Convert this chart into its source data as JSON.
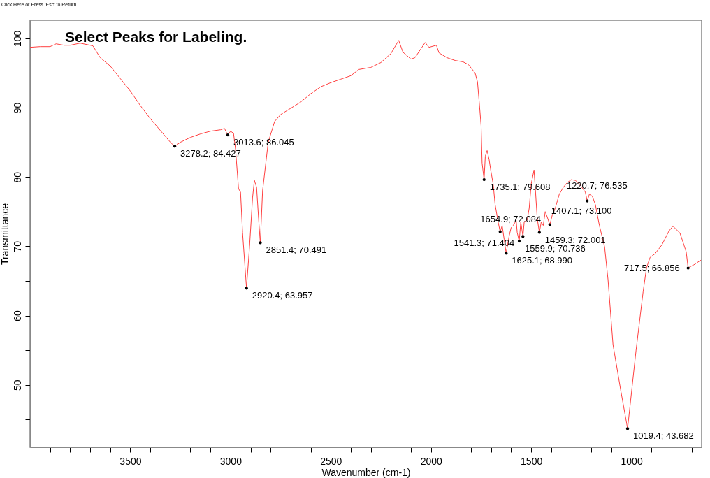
{
  "chart_data": {
    "type": "line",
    "title": "Select Peaks for Labeling.",
    "xlabel": "Wavenumber (cm-1)",
    "ylabel": "Transmittance",
    "xlim": [
      4000,
      650
    ],
    "ylim": [
      41,
      102.6
    ],
    "xticks": [
      {
        "value": 3900,
        "label": null
      },
      {
        "value": 3800,
        "label": null
      },
      {
        "value": 3700,
        "label": null
      },
      {
        "value": 3600,
        "label": null
      },
      3500,
      {
        "value": 3400,
        "label": null
      },
      {
        "value": 3300,
        "label": null
      },
      {
        "value": 3200,
        "label": null
      },
      {
        "value": 3100,
        "label": null
      },
      3000,
      {
        "value": 2900,
        "label": null
      },
      {
        "value": 2800,
        "label": null
      },
      {
        "value": 2700,
        "label": null
      },
      {
        "value": 2600,
        "label": null
      },
      2500,
      {
        "value": 2400,
        "label": null
      },
      {
        "value": 2300,
        "label": null
      },
      {
        "value": 2200,
        "label": null
      },
      {
        "value": 2100,
        "label": null
      },
      2000,
      {
        "value": 1900,
        "label": null
      },
      {
        "value": 1800,
        "label": null
      },
      {
        "value": 1700,
        "label": null
      },
      {
        "value": 1600,
        "label": null
      },
      1500,
      {
        "value": 1400,
        "label": null
      },
      {
        "value": 1300,
        "label": null
      },
      {
        "value": 1200,
        "label": null
      },
      {
        "value": 1100,
        "label": null
      },
      1000,
      {
        "value": 900,
        "label": null
      },
      {
        "value": 800,
        "label": null
      },
      {
        "value": 700,
        "label": null
      }
    ],
    "yticks": [
      {
        "value": 45,
        "label": null
      },
      50,
      {
        "value": 55,
        "label": null
      },
      60,
      {
        "value": 65,
        "label": null
      },
      70,
      {
        "value": 75,
        "label": null
      },
      80,
      {
        "value": 85,
        "label": null
      },
      90,
      {
        "value": 95,
        "label": null
      },
      100
    ],
    "grid": false,
    "marker": "none",
    "line_style": "solid",
    "series": [
      {
        "color": "#ff4040",
        "x": [
          4000,
          3950,
          3900,
          3870,
          3830,
          3800,
          3750,
          3700,
          3686,
          3650,
          3600,
          3550,
          3500,
          3450,
          3400,
          3350,
          3300,
          3278.2,
          3250,
          3200,
          3150,
          3100,
          3050,
          3030,
          3013.6,
          3000,
          2985,
          2975,
          2960,
          2950,
          2940,
          2920.4,
          2905,
          2890,
          2881,
          2870,
          2860,
          2851.4,
          2840,
          2812,
          2780,
          2750,
          2700,
          2650,
          2600,
          2550,
          2500,
          2450,
          2400,
          2360,
          2300,
          2250,
          2200,
          2161,
          2140,
          2100,
          2080,
          2050,
          2029,
          2010,
          1973,
          1960,
          1920,
          1880,
          1840,
          1813,
          1780,
          1768,
          1760,
          1750,
          1745,
          1735.1,
          1729,
          1720,
          1710,
          1702,
          1690,
          1680,
          1665,
          1654.9,
          1645,
          1635,
          1625.1,
          1610,
          1600,
          1590,
          1575,
          1570,
          1559.9,
          1552,
          1541.3,
          1535,
          1520,
          1510,
          1500,
          1486,
          1480,
          1470,
          1459.3,
          1450,
          1440,
          1430,
          1420,
          1407.1,
          1395,
          1380,
          1360,
          1340,
          1320,
          1300,
          1280,
          1260,
          1240,
          1230,
          1220.7,
          1210,
          1195,
          1180,
          1160,
          1134,
          1117,
          1092,
          1054,
          1019.4,
          977,
          942,
          925,
          907,
          883,
          848,
          813,
          793,
          758,
          727,
          717.5,
          690,
          653
        ],
        "values": [
          98.7,
          98.8,
          98.8,
          99.2,
          99.0,
          99.0,
          99.3,
          99.0,
          98.9,
          97.2,
          96.0,
          94.2,
          92.4,
          90.3,
          88.4,
          86.7,
          85.0,
          84.4,
          85.0,
          85.7,
          86.2,
          86.6,
          86.8,
          87.0,
          86.0,
          86.6,
          86.3,
          84.0,
          78.3,
          77.8,
          72.0,
          64.0,
          70.0,
          77.0,
          79.5,
          78.5,
          74.0,
          70.5,
          78.0,
          85.0,
          88.0,
          89.0,
          89.9,
          90.8,
          92.0,
          93.0,
          93.6,
          94.1,
          94.6,
          95.5,
          95.8,
          96.5,
          97.8,
          99.7,
          98.0,
          97.0,
          97.2,
          98.5,
          99.4,
          98.7,
          99.0,
          97.9,
          97.2,
          96.8,
          96.6,
          96.2,
          95.0,
          93.7,
          91.0,
          87.4,
          82.0,
          79.6,
          83.0,
          83.8,
          82.5,
          81.0,
          79.0,
          76.0,
          73.5,
          72.1,
          73.0,
          71.0,
          69.0,
          71.5,
          72.7,
          73.0,
          73.7,
          72.0,
          70.7,
          73.5,
          71.4,
          73.5,
          73.8,
          75.5,
          79.0,
          81.0,
          78.5,
          74.0,
          72.0,
          73.5,
          73.0,
          75.0,
          74.2,
          73.1,
          74.5,
          75.5,
          77.5,
          78.5,
          79.2,
          79.6,
          79.5,
          79.0,
          78.2,
          77.8,
          76.5,
          77.5,
          77.2,
          76.0,
          73.0,
          69.9,
          65.2,
          55.8,
          49.3,
          43.7,
          55.0,
          63.4,
          66.9,
          68.4,
          68.9,
          70.2,
          72.2,
          72.9,
          71.9,
          69.2,
          66.9,
          67.3,
          68.0
        ]
      }
    ],
    "annotations": [
      "Click Here or Press 'Esc' to Return",
      {
        "text": "3278.2; 84.427",
        "x": 3278.2,
        "y": 84.427
      },
      {
        "text": "3013.6; 86.045",
        "x": 3013.6,
        "y": 86.045
      },
      {
        "text": "2920.4; 63.957",
        "x": 2920.4,
        "y": 63.957
      },
      {
        "text": "2851.4; 70.491",
        "x": 2851.4,
        "y": 70.491
      },
      {
        "text": "1735.1; 79.608",
        "x": 1735.1,
        "y": 79.608
      },
      {
        "text": "1654.9; 72.084",
        "x": 1654.9,
        "y": 72.084
      },
      {
        "text": "1625.1; 68.990",
        "x": 1625.1,
        "y": 68.99
      },
      {
        "text": "1559.9; 70.736",
        "x": 1559.9,
        "y": 70.736
      },
      {
        "text": "1541.3; 71.404",
        "x": 1541.3,
        "y": 71.404
      },
      {
        "text": "1459.3; 72.001",
        "x": 1459.3,
        "y": 72.001
      },
      {
        "text": "1407.1; 73.100",
        "x": 1407.1,
        "y": 73.1
      },
      {
        "text": "1220.7; 76.535",
        "x": 1220.7,
        "y": 76.535
      },
      {
        "text": "1019.4; 43.682",
        "x": 1019.4,
        "y": 43.682
      },
      {
        "text": "717.5; 66.856",
        "x": 717.5,
        "y": 66.856
      }
    ]
  }
}
